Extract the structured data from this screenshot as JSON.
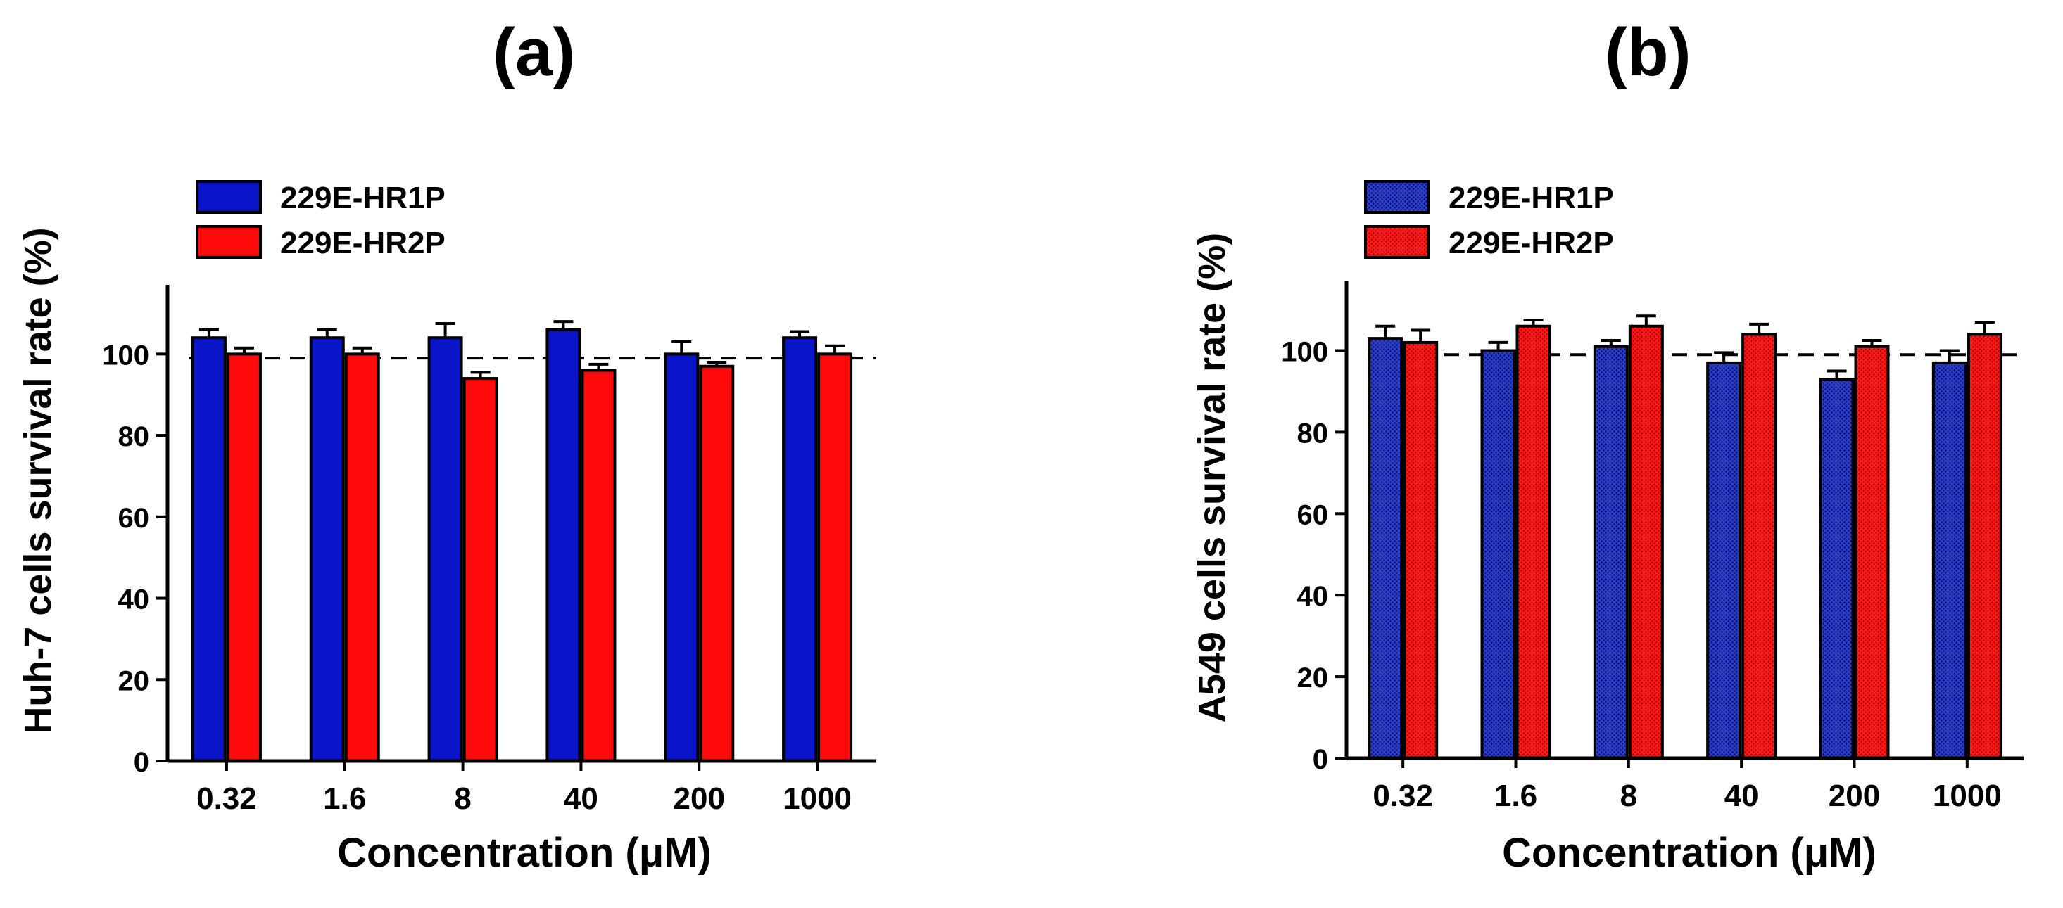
{
  "chart_data": [
    {
      "type": "bar",
      "panel_label": "(a)",
      "categories": [
        "0.32",
        "1.6",
        "8",
        "40",
        "200",
        "1000"
      ],
      "series": [
        {
          "name": "229E-HR1P",
          "values": [
            104,
            104,
            104,
            106,
            100,
            104
          ],
          "errors": [
            2,
            2,
            3.5,
            2,
            3,
            1.5
          ],
          "color": "#0a14c8",
          "pattern": "solid"
        },
        {
          "name": "229E-HR2P",
          "values": [
            100,
            100,
            94,
            96,
            97,
            100
          ],
          "errors": [
            1.5,
            1.5,
            1.5,
            1.5,
            1,
            2
          ],
          "color": "#ff0a0a",
          "pattern": "solid"
        }
      ],
      "reference_line": 99,
      "xlabel": "Concentration (μM)",
      "ylabel": "Huh-7 cells survival rate (%)",
      "yticks": [
        0,
        20,
        40,
        60,
        80,
        100
      ],
      "ylim": [
        0,
        117
      ],
      "legend_position": "top-left"
    },
    {
      "type": "bar",
      "panel_label": "(b)",
      "categories": [
        "0.32",
        "1.6",
        "8",
        "40",
        "200",
        "1000"
      ],
      "series": [
        {
          "name": "229E-HR1P",
          "values": [
            103,
            100,
            101,
            97,
            93,
            97
          ],
          "errors": [
            3,
            2,
            1.5,
            2.5,
            2,
            3
          ],
          "color": "#1a1f9a",
          "pattern": "dotted"
        },
        {
          "name": "229E-HR2P",
          "values": [
            102,
            106,
            106,
            104,
            101,
            104
          ],
          "errors": [
            3,
            1.5,
            2.5,
            2.5,
            1.5,
            3
          ],
          "color": "#ff1a1a",
          "pattern": "dotted"
        }
      ],
      "reference_line": 99,
      "xlabel": "Concentration (μM)",
      "ylabel": "A549 cells survival rate (%)",
      "yticks": [
        0,
        20,
        40,
        60,
        80,
        100
      ],
      "ylim": [
        0,
        117
      ],
      "legend_position": "top-left"
    }
  ]
}
